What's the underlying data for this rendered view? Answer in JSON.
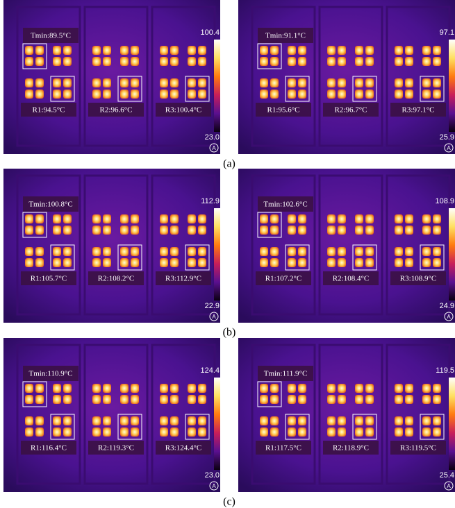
{
  "figure": {
    "rows": [
      {
        "caption": "(a)",
        "panels": [
          {
            "tmin": "Tmin:89.5°C",
            "scale_max": "100.4",
            "scale_min": "23.0",
            "badge": "A",
            "regions": [
              "R1:94.5°C",
              "R2:96.6°C",
              "R3:100.4°C"
            ]
          },
          {
            "tmin": "Tmin:91.1°C",
            "scale_max": "97.1",
            "scale_min": "25.9",
            "badge": "A",
            "regions": [
              "R1:95.6°C",
              "R2:96.7°C",
              "R3:97.1°C"
            ]
          }
        ]
      },
      {
        "caption": "(b)",
        "panels": [
          {
            "tmin": "Tmin:100.8°C",
            "scale_max": "112.9",
            "scale_min": "22.9",
            "badge": "A",
            "regions": [
              "R1:105.7°C",
              "R2:108.2°C",
              "R3:112.9°C"
            ]
          },
          {
            "tmin": "Tmin:102.6°C",
            "scale_max": "108.9",
            "scale_min": "24.9",
            "badge": "A",
            "regions": [
              "R1:107.2°C",
              "R2:108.4°C",
              "R3:108.9°C"
            ]
          }
        ]
      },
      {
        "caption": "(c)",
        "panels": [
          {
            "tmin": "Tmin:110.9°C",
            "scale_max": "124.4",
            "scale_min": "23.0",
            "badge": "A",
            "regions": [
              "R1:116.4°C",
              "R2:119.3°C",
              "R3:124.4°C"
            ]
          },
          {
            "tmin": "Tmin:111.9°C",
            "scale_max": "119.5",
            "scale_min": "25.4",
            "badge": "A",
            "regions": [
              "R1:117.5°C",
              "R2:118.9°C",
              "R3:119.5°C"
            ]
          }
        ]
      }
    ]
  }
}
